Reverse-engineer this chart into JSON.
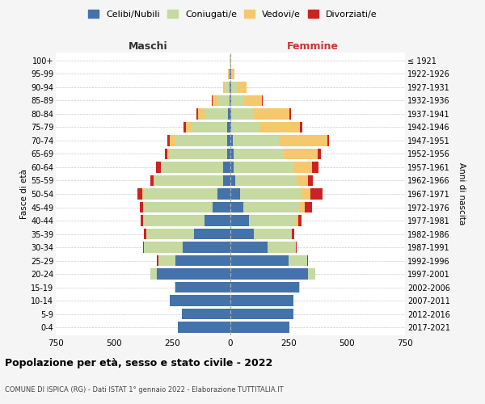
{
  "age_groups": [
    "0-4",
    "5-9",
    "10-14",
    "15-19",
    "20-24",
    "25-29",
    "30-34",
    "35-39",
    "40-44",
    "45-49",
    "50-54",
    "55-59",
    "60-64",
    "65-69",
    "70-74",
    "75-79",
    "80-84",
    "85-89",
    "90-94",
    "95-99",
    "100+"
  ],
  "birth_years": [
    "2017-2021",
    "2012-2016",
    "2007-2011",
    "2002-2006",
    "1997-2001",
    "1992-1996",
    "1987-1991",
    "1982-1986",
    "1977-1981",
    "1972-1976",
    "1967-1971",
    "1962-1966",
    "1957-1961",
    "1952-1956",
    "1947-1951",
    "1942-1946",
    "1937-1941",
    "1932-1936",
    "1927-1931",
    "1922-1926",
    "≤ 1921"
  ],
  "maschi": {
    "celibi": [
      225,
      210,
      260,
      235,
      315,
      235,
      205,
      155,
      110,
      75,
      55,
      30,
      30,
      15,
      15,
      15,
      10,
      5,
      5,
      2,
      0
    ],
    "coniugati": [
      0,
      0,
      0,
      5,
      30,
      75,
      165,
      205,
      265,
      295,
      320,
      295,
      265,
      245,
      220,
      150,
      100,
      50,
      20,
      5,
      2
    ],
    "vedovi": [
      0,
      0,
      0,
      0,
      0,
      0,
      0,
      0,
      0,
      5,
      5,
      5,
      5,
      10,
      25,
      25,
      30,
      20,
      5,
      2,
      0
    ],
    "divorziati": [
      0,
      0,
      0,
      0,
      0,
      5,
      5,
      10,
      10,
      15,
      20,
      15,
      20,
      10,
      10,
      10,
      5,
      5,
      0,
      0,
      0
    ]
  },
  "femmine": {
    "nubili": [
      255,
      270,
      270,
      295,
      335,
      250,
      160,
      100,
      80,
      55,
      40,
      20,
      15,
      15,
      10,
      5,
      5,
      5,
      5,
      2,
      0
    ],
    "coniugate": [
      0,
      0,
      0,
      5,
      30,
      80,
      120,
      160,
      200,
      245,
      265,
      265,
      255,
      215,
      200,
      120,
      95,
      50,
      25,
      5,
      2
    ],
    "vedove": [
      0,
      0,
      0,
      0,
      0,
      0,
      0,
      5,
      10,
      20,
      40,
      50,
      80,
      145,
      205,
      175,
      155,
      80,
      40,
      10,
      2
    ],
    "divorziate": [
      0,
      0,
      0,
      0,
      0,
      5,
      5,
      10,
      15,
      30,
      50,
      20,
      30,
      15,
      10,
      10,
      5,
      5,
      0,
      0,
      0
    ]
  },
  "colors": {
    "celibi": "#4472aa",
    "coniugati": "#c5d9a0",
    "vedovi": "#f5c86e",
    "divorziati": "#cc2222"
  },
  "xlim": 750,
  "title": "Popolazione per età, sesso e stato civile - 2022",
  "subtitle": "COMUNE DI ISPICA (RG) - Dati ISTAT 1° gennaio 2022 - Elaborazione TUTTITALIA.IT",
  "ylabel_left": "Fasce di età",
  "ylabel_right": "Anni di nascita",
  "legend_labels": [
    "Celibi/Nubili",
    "Coniugati/e",
    "Vedovi/e",
    "Divorziati/e"
  ],
  "maschi_label": "Maschi",
  "femmine_label": "Femmine",
  "bg_color": "#f5f5f5",
  "plot_bg": "#ffffff"
}
